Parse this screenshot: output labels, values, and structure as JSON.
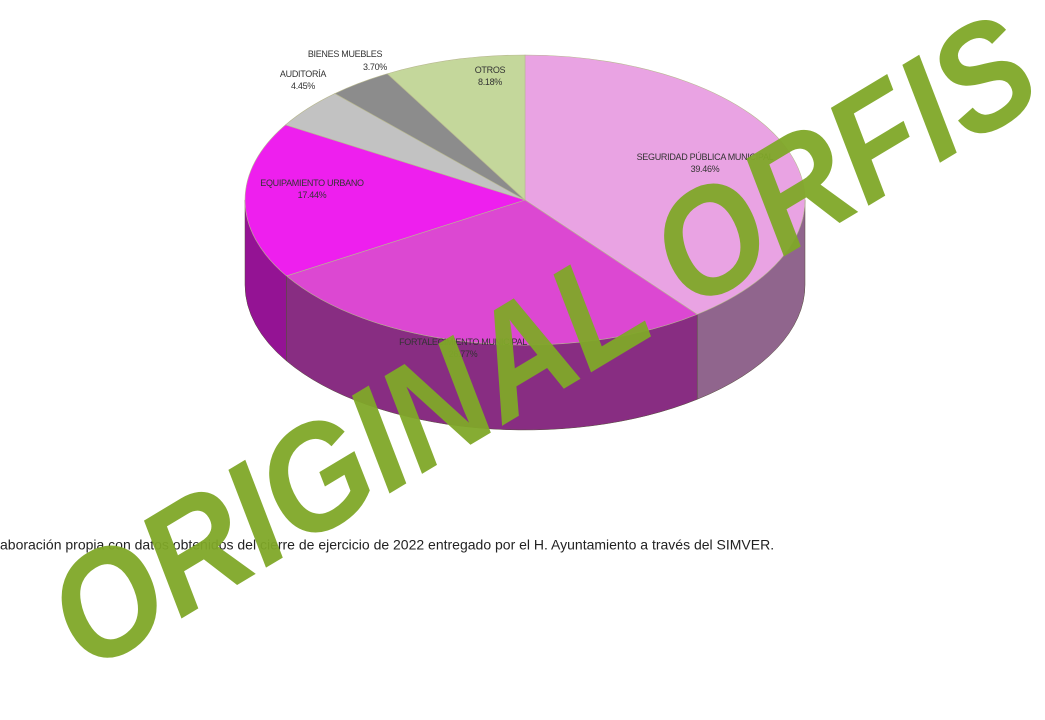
{
  "chart_data": {
    "type": "pie",
    "categories": [
      "SEGURIDAD PÚBLICA MUNICIPAL",
      "FORTALECIMIENTO MUNICIPAL",
      "EQUIPAMIENTO URBANO",
      "AUDITORÍA",
      "BIENES MUEBLES",
      "OTROS"
    ],
    "values": [
      39.46,
      26.77,
      17.44,
      4.45,
      3.7,
      8.18
    ],
    "value_labels": [
      "39.46%",
      "26.77%",
      "17.44%",
      "4.45%",
      "3.70%",
      "8.18%"
    ],
    "colors": [
      "#e9a3e3",
      "#dc48d2",
      "#ee1fee",
      "#c2c2c2",
      "#8c8c8c",
      "#c4d79b"
    ],
    "source": "aboración propia con datos obtenidos del cierre de ejercicio de 2022 entregado por el H. Ayuntamiento a través del SIMVER.",
    "watermark": "ORIGINAL ORFIS"
  }
}
